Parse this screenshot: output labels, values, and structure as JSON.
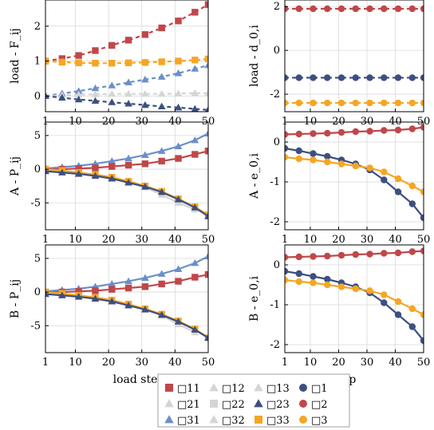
{
  "colors": {
    "c11": "#c0474a",
    "c22": "#d5d5d5",
    "c31": "#6a8fc9",
    "c23": "#3d4f80",
    "c33": "#f5a623",
    "e1": "#3d4f80",
    "e2": "#c0474a",
    "e3": "#f5a623"
  },
  "legend": {
    "entries": [
      {
        "key": "11",
        "label": "□11",
        "marker": "square",
        "color": "#c0474a"
      },
      {
        "key": "12",
        "label": "□12",
        "marker": "triangle",
        "color": "#d5d5d5"
      },
      {
        "key": "13",
        "label": "□13",
        "marker": "triangle",
        "color": "#d5d5d5"
      },
      {
        "key": "1",
        "label": "□1",
        "marker": "circle",
        "color": "#3d4f80"
      },
      {
        "key": "21",
        "label": "□21",
        "marker": "triangle",
        "color": "#d5d5d5"
      },
      {
        "key": "22",
        "label": "□22",
        "marker": "square",
        "color": "#d5d5d5"
      },
      {
        "key": "23",
        "label": "□23",
        "marker": "triangle",
        "color": "#3d4f80"
      },
      {
        "key": "2",
        "label": "□2",
        "marker": "circle",
        "color": "#c0474a"
      },
      {
        "key": "31",
        "label": "□31",
        "marker": "triangle",
        "color": "#6a8fc9"
      },
      {
        "key": "32",
        "label": "□32",
        "marker": "triangle",
        "color": "#d5d5d5"
      },
      {
        "key": "33",
        "label": "□33",
        "marker": "square",
        "color": "#f5a623"
      },
      {
        "key": "3",
        "label": "□3",
        "marker": "circle",
        "color": "#f5a623"
      }
    ]
  },
  "chart_data": [
    {
      "id": "top-left",
      "type": "line",
      "ylabel": "load - F_ij",
      "xlabel": "",
      "xlim": [
        1,
        50
      ],
      "ylim": [
        -0.45,
        2.75
      ],
      "yticks": [
        0,
        1,
        2
      ],
      "xticks": [
        1,
        10,
        20,
        30,
        40,
        50
      ],
      "series": [
        {
          "key": "11",
          "color": "#c0474a",
          "marker": "square",
          "dash": true,
          "x": [
            1,
            6,
            11,
            16,
            21,
            26,
            31,
            36,
            41,
            46,
            50
          ],
          "y": [
            1.0,
            1.07,
            1.16,
            1.3,
            1.45,
            1.6,
            1.76,
            1.95,
            2.15,
            2.4,
            2.62
          ]
        },
        {
          "key": "31",
          "color": "#6a8fc9",
          "marker": "triangle",
          "dash": true,
          "x": [
            1,
            6,
            11,
            16,
            21,
            26,
            31,
            36,
            41,
            46,
            50
          ],
          "y": [
            0.0,
            0.07,
            0.14,
            0.22,
            0.3,
            0.39,
            0.47,
            0.55,
            0.65,
            0.78,
            0.88
          ]
        },
        {
          "key": "22",
          "color": "#d5d5d5",
          "marker": "triangle",
          "dash": true,
          "x": [
            1,
            6,
            11,
            16,
            21,
            26,
            31,
            36,
            41,
            46,
            50
          ],
          "y": [
            0.0,
            0.02,
            0.04,
            0.05,
            0.06,
            0.06,
            0.06,
            0.06,
            0.07,
            0.08,
            0.08
          ]
        },
        {
          "key": "33",
          "color": "#f5a623",
          "marker": "square",
          "dash": true,
          "x": [
            1,
            6,
            11,
            16,
            21,
            26,
            31,
            36,
            41,
            46,
            50
          ],
          "y": [
            1.0,
            0.97,
            0.95,
            0.94,
            0.94,
            0.95,
            0.96,
            0.98,
            1.0,
            1.03,
            1.06
          ]
        },
        {
          "key": "23",
          "color": "#3d4f80",
          "marker": "triangle",
          "dash": true,
          "x": [
            1,
            6,
            11,
            16,
            21,
            26,
            31,
            36,
            41,
            46,
            50
          ],
          "y": [
            0.0,
            -0.05,
            -0.1,
            -0.14,
            -0.18,
            -0.22,
            -0.26,
            -0.3,
            -0.33,
            -0.37,
            -0.4
          ]
        }
      ]
    },
    {
      "id": "top-right",
      "type": "line",
      "ylabel": "load - d_0,i",
      "xlabel": "",
      "xlim": [
        1,
        50
      ],
      "ylim": [
        -2.8,
        2.3
      ],
      "yticks": [
        -2,
        0,
        2
      ],
      "xticks": [
        1,
        10,
        20,
        30,
        40,
        50
      ],
      "series": [
        {
          "key": "2",
          "color": "#c0474a",
          "marker": "circle",
          "dash": true,
          "x": [
            1,
            6,
            11,
            16,
            21,
            26,
            31,
            36,
            41,
            46,
            50
          ],
          "y": [
            1.9,
            1.9,
            1.9,
            1.9,
            1.9,
            1.9,
            1.9,
            1.9,
            1.9,
            1.9,
            1.9
          ]
        },
        {
          "key": "1",
          "color": "#3d4f80",
          "marker": "circle",
          "dash": true,
          "x": [
            1,
            6,
            11,
            16,
            21,
            26,
            31,
            36,
            41,
            46,
            50
          ],
          "y": [
            -1.25,
            -1.25,
            -1.25,
            -1.25,
            -1.25,
            -1.25,
            -1.25,
            -1.25,
            -1.25,
            -1.25,
            -1.25
          ]
        },
        {
          "key": "3",
          "color": "#f5a623",
          "marker": "circle",
          "dash": true,
          "x": [
            1,
            6,
            11,
            16,
            21,
            26,
            31,
            36,
            41,
            46,
            50
          ],
          "y": [
            -2.4,
            -2.4,
            -2.4,
            -2.4,
            -2.4,
            -2.4,
            -2.4,
            -2.4,
            -2.4,
            -2.4,
            -2.4
          ]
        }
      ]
    },
    {
      "id": "mid-left",
      "type": "line",
      "ylabel": "A - P_ij",
      "xlabel": "",
      "xlim": [
        1,
        50
      ],
      "ylim": [
        -9,
        7
      ],
      "yticks": [
        -5,
        0,
        5
      ],
      "xticks": [
        1,
        10,
        20,
        30,
        40,
        50
      ],
      "series": [
        {
          "key": "22",
          "color": "#d5d5d5",
          "marker": "triangle",
          "x": [
            1,
            6,
            11,
            16,
            21,
            26,
            31,
            36,
            41,
            46
          ],
          "y": [
            0.0,
            -0.3,
            -0.5,
            -0.8,
            -1.3,
            -2.0,
            -2.7,
            -3.8,
            -5.0,
            -6.0
          ]
        },
        {
          "key": "31",
          "color": "#6a8fc9",
          "marker": "triangle",
          "x": [
            1,
            6,
            11,
            16,
            21,
            26,
            31,
            36,
            41,
            46,
            50
          ],
          "y": [
            0.1,
            0.3,
            0.5,
            0.8,
            1.2,
            1.6,
            2.1,
            2.7,
            3.4,
            4.3,
            5.3
          ]
        },
        {
          "key": "11",
          "color": "#c0474a",
          "marker": "square",
          "x": [
            1,
            6,
            11,
            16,
            21,
            26,
            31,
            36,
            41,
            46,
            50
          ],
          "y": [
            0.0,
            0.0,
            0.1,
            0.2,
            0.4,
            0.6,
            0.8,
            1.2,
            1.6,
            2.2,
            2.7
          ]
        },
        {
          "key": "33",
          "color": "#f5a623",
          "marker": "square",
          "x": [
            1,
            6,
            11,
            16,
            21,
            26,
            31,
            36,
            41,
            46,
            50
          ],
          "y": [
            0.0,
            -0.2,
            -0.5,
            -0.8,
            -1.2,
            -1.8,
            -2.5,
            -3.3,
            -4.4,
            -5.6,
            -6.8
          ]
        },
        {
          "key": "23",
          "color": "#3d4f80",
          "marker": "triangle",
          "x": [
            1,
            6,
            11,
            16,
            21,
            26,
            31,
            36,
            41,
            46,
            50
          ],
          "y": [
            -0.3,
            -0.5,
            -0.7,
            -1.0,
            -1.4,
            -2.0,
            -2.6,
            -3.4,
            -4.5,
            -5.7,
            -7.0
          ]
        }
      ]
    },
    {
      "id": "mid-right",
      "type": "line",
      "ylabel": "A - e_0,i",
      "xlabel": "",
      "xlim": [
        1,
        50
      ],
      "ylim": [
        -2.2,
        0.5
      ],
      "yticks": [
        -2,
        -1,
        0
      ],
      "xticks": [
        1,
        10,
        20,
        30,
        40,
        50
      ],
      "series": [
        {
          "key": "2",
          "color": "#c0474a",
          "marker": "circle",
          "x": [
            1,
            6,
            11,
            16,
            21,
            26,
            31,
            36,
            41,
            46,
            50
          ],
          "y": [
            0.19,
            0.2,
            0.21,
            0.22,
            0.24,
            0.26,
            0.27,
            0.29,
            0.3,
            0.33,
            0.37
          ]
        },
        {
          "key": "1",
          "color": "#3d4f80",
          "marker": "circle",
          "x": [
            1,
            6,
            11,
            16,
            21,
            26,
            31,
            36,
            41,
            46,
            50
          ],
          "y": [
            -0.16,
            -0.22,
            -0.29,
            -0.36,
            -0.45,
            -0.55,
            -0.7,
            -0.95,
            -1.25,
            -1.55,
            -1.9
          ]
        },
        {
          "key": "3",
          "color": "#f5a623",
          "marker": "circle",
          "x": [
            1,
            6,
            11,
            16,
            21,
            26,
            31,
            36,
            41,
            46,
            50
          ],
          "y": [
            -0.38,
            -0.42,
            -0.45,
            -0.5,
            -0.55,
            -0.6,
            -0.65,
            -0.75,
            -0.92,
            -1.1,
            -1.25
          ]
        }
      ]
    },
    {
      "id": "bot-left",
      "type": "line",
      "ylabel": "B - P_ij",
      "xlabel": "load step",
      "xlim": [
        1,
        50
      ],
      "ylim": [
        -9,
        7
      ],
      "yticks": [
        -5,
        0,
        5
      ],
      "xticks": [
        1,
        10,
        20,
        30,
        40,
        50
      ],
      "series": [
        {
          "key": "22",
          "color": "#d5d5d5",
          "marker": "triangle",
          "x": [
            1,
            6,
            11,
            16,
            21,
            26,
            31,
            36,
            41,
            46
          ],
          "y": [
            0.0,
            -0.3,
            -0.5,
            -0.8,
            -1.2,
            -1.8,
            -2.6,
            -3.5,
            -4.8,
            -6.0
          ]
        },
        {
          "key": "31",
          "color": "#6a8fc9",
          "marker": "triangle",
          "x": [
            1,
            6,
            11,
            16,
            21,
            26,
            31,
            36,
            41,
            46,
            50
          ],
          "y": [
            0.1,
            0.3,
            0.5,
            0.8,
            1.2,
            1.6,
            2.1,
            2.7,
            3.4,
            4.3,
            5.3
          ]
        },
        {
          "key": "11",
          "color": "#c0474a",
          "marker": "square",
          "x": [
            1,
            6,
            11,
            16,
            21,
            26,
            31,
            36,
            41,
            46,
            50
          ],
          "y": [
            0.0,
            0.0,
            0.1,
            0.2,
            0.4,
            0.6,
            0.8,
            1.2,
            1.6,
            2.2,
            2.6
          ]
        },
        {
          "key": "33",
          "color": "#f5a623",
          "marker": "square",
          "x": [
            1,
            6,
            11,
            16,
            21,
            26,
            31,
            36,
            41,
            46,
            50
          ],
          "y": [
            0.0,
            -0.2,
            -0.5,
            -0.8,
            -1.2,
            -1.8,
            -2.5,
            -3.3,
            -4.3,
            -5.5,
            -6.8
          ]
        },
        {
          "key": "23",
          "color": "#3d4f80",
          "marker": "triangle",
          "x": [
            1,
            6,
            11,
            16,
            21,
            26,
            31,
            36,
            41,
            46,
            50
          ],
          "y": [
            -0.3,
            -0.5,
            -0.7,
            -1.0,
            -1.4,
            -2.0,
            -2.6,
            -3.4,
            -4.4,
            -5.6,
            -6.8
          ]
        }
      ]
    },
    {
      "id": "bot-right",
      "type": "line",
      "ylabel": "B - e_0,i",
      "xlabel": "load step",
      "xlim": [
        1,
        50
      ],
      "ylim": [
        -2.2,
        0.5
      ],
      "yticks": [
        -2,
        -1,
        0
      ],
      "xticks": [
        1,
        10,
        20,
        30,
        40,
        50
      ],
      "series": [
        {
          "key": "2",
          "color": "#c0474a",
          "marker": "circle",
          "x": [
            1,
            6,
            11,
            16,
            21,
            26,
            31,
            36,
            41,
            46,
            50
          ],
          "y": [
            0.19,
            0.2,
            0.21,
            0.22,
            0.24,
            0.26,
            0.27,
            0.29,
            0.3,
            0.33,
            0.35
          ]
        },
        {
          "key": "1",
          "color": "#3d4f80",
          "marker": "circle",
          "x": [
            1,
            6,
            11,
            16,
            21,
            26,
            31,
            36,
            41,
            46,
            50
          ],
          "y": [
            -0.16,
            -0.22,
            -0.29,
            -0.36,
            -0.45,
            -0.55,
            -0.7,
            -0.95,
            -1.25,
            -1.55,
            -1.9
          ]
        },
        {
          "key": "3",
          "color": "#f5a623",
          "marker": "circle",
          "x": [
            1,
            6,
            11,
            16,
            21,
            26,
            31,
            36,
            41,
            46,
            50
          ],
          "y": [
            -0.38,
            -0.42,
            -0.45,
            -0.5,
            -0.55,
            -0.6,
            -0.65,
            -0.75,
            -0.92,
            -1.1,
            -1.25
          ]
        }
      ]
    }
  ]
}
